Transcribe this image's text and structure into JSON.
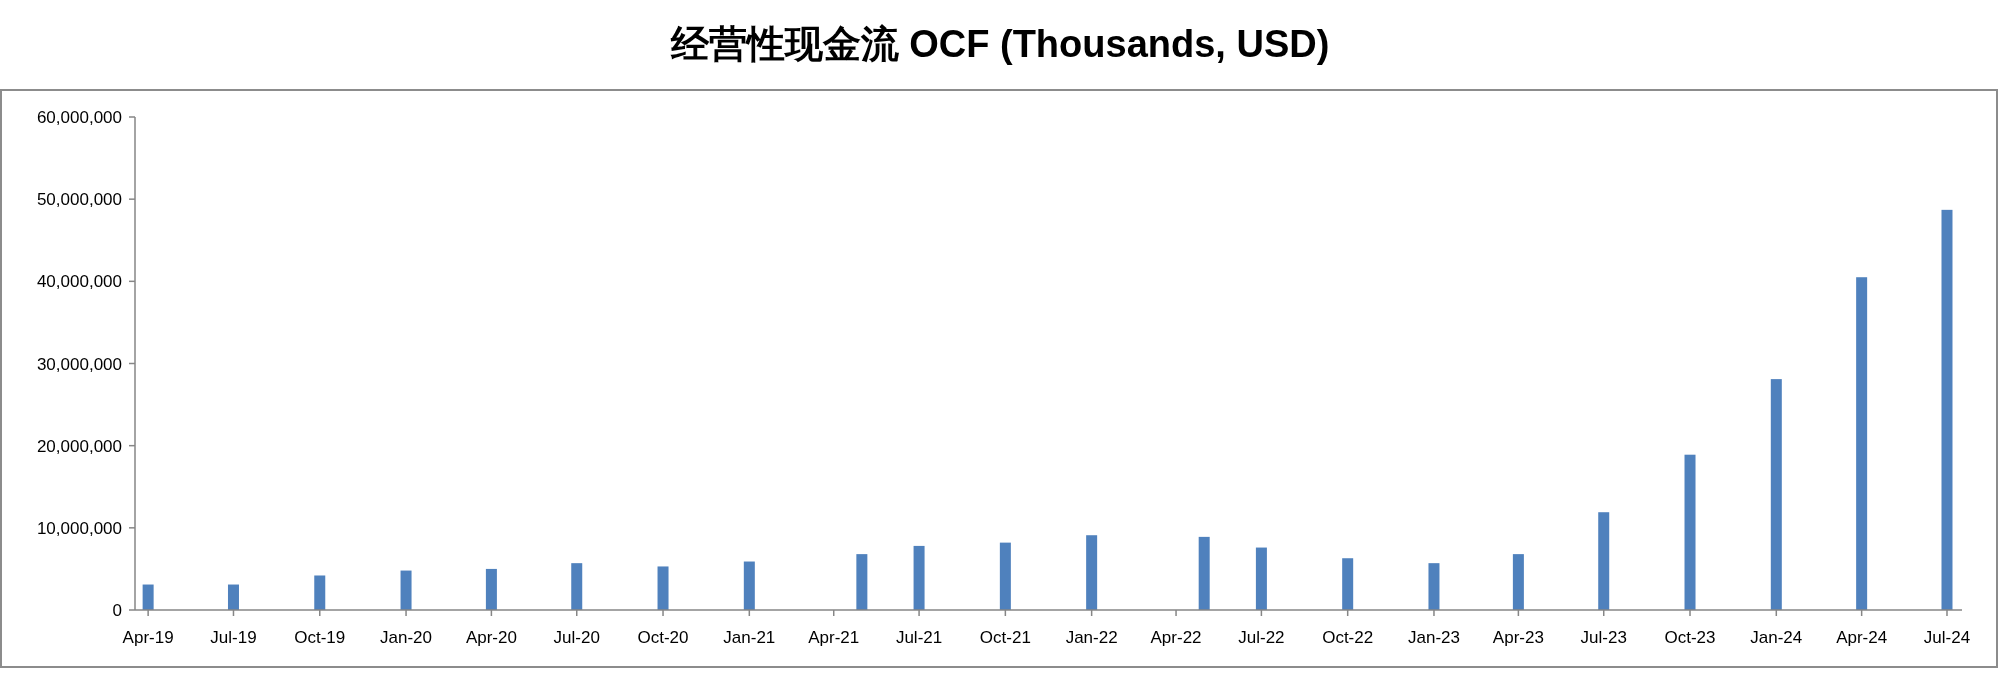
{
  "chart_data": {
    "type": "bar",
    "title": "经营性现金流 OCF (Thousands, USD)",
    "x": [
      "2019-04-01",
      "2019-07-01",
      "2019-10-01",
      "2020-01-01",
      "2020-04-01",
      "2020-07-01",
      "2020-10-01",
      "2021-01-01",
      "2021-05-01",
      "2021-07-01",
      "2021-10-01",
      "2022-01-01",
      "2022-05-01",
      "2022-07-01",
      "2022-10-01",
      "2023-01-01",
      "2023-04-01",
      "2023-07-01",
      "2023-10-01",
      "2024-01-01",
      "2024-04-01",
      "2024-07-01"
    ],
    "values": [
      3100000,
      3100000,
      4200000,
      4800000,
      5000000,
      5700000,
      5300000,
      5900000,
      6800000,
      7800000,
      8200000,
      9100000,
      8900000,
      7600000,
      6300000,
      5700000,
      6800000,
      11900000,
      18900000,
      28100000,
      40500000,
      48700000
    ],
    "color": "#4f81bd",
    "xlim": [
      "2019-03-18",
      "2024-07-17"
    ],
    "xticks": [
      {
        "value": "2019-04-01",
        "label": "Apr-19"
      },
      {
        "value": "2019-07-01",
        "label": "Jul-19"
      },
      {
        "value": "2019-10-01",
        "label": "Oct-19"
      },
      {
        "value": "2020-01-01",
        "label": "Jan-20"
      },
      {
        "value": "2020-04-01",
        "label": "Apr-20"
      },
      {
        "value": "2020-07-01",
        "label": "Jul-20"
      },
      {
        "value": "2020-10-01",
        "label": "Oct-20"
      },
      {
        "value": "2021-01-01",
        "label": "Jan-21"
      },
      {
        "value": "2021-04-01",
        "label": "Apr-21"
      },
      {
        "value": "2021-07-01",
        "label": "Jul-21"
      },
      {
        "value": "2021-10-01",
        "label": "Oct-21"
      },
      {
        "value": "2022-01-01",
        "label": "Jan-22"
      },
      {
        "value": "2022-04-01",
        "label": "Apr-22"
      },
      {
        "value": "2022-07-01",
        "label": "Jul-22"
      },
      {
        "value": "2022-10-01",
        "label": "Oct-22"
      },
      {
        "value": "2023-01-01",
        "label": "Jan-23"
      },
      {
        "value": "2023-04-01",
        "label": "Apr-23"
      },
      {
        "value": "2023-07-01",
        "label": "Jul-23"
      },
      {
        "value": "2023-10-01",
        "label": "Oct-23"
      },
      {
        "value": "2024-01-01",
        "label": "Jan-24"
      },
      {
        "value": "2024-04-01",
        "label": "Apr-24"
      },
      {
        "value": "2024-07-01",
        "label": "Jul-24"
      }
    ],
    "ylim": [
      0,
      60000000
    ],
    "yticks": [
      {
        "value": 0,
        "label": "0"
      },
      {
        "value": 10000000,
        "label": "10,000,000"
      },
      {
        "value": 20000000,
        "label": "20,000,000"
      },
      {
        "value": 30000000,
        "label": "30,000,000"
      },
      {
        "value": 40000000,
        "label": "40,000,000"
      },
      {
        "value": 50000000,
        "label": "50,000,000"
      },
      {
        "value": 60000000,
        "label": "60,000,000"
      }
    ],
    "grid": false
  }
}
